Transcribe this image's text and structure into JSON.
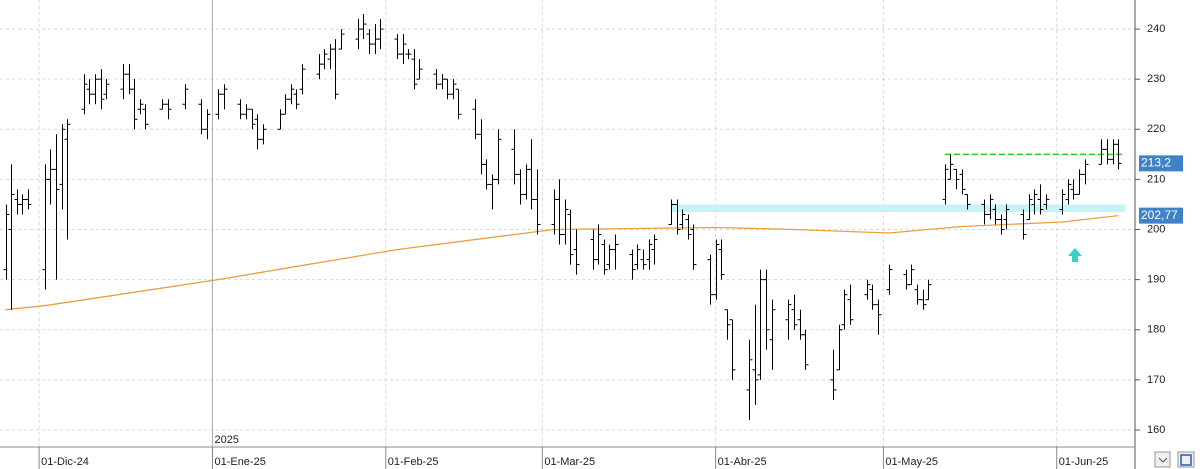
{
  "chart_data": {
    "type": "ohlc",
    "color": "#000000",
    "grid": true,
    "xlim": [
      "2024-11-24",
      "2025-06-15"
    ],
    "ylim": [
      156.6,
      245.8
    ],
    "yticks": [
      160,
      170,
      180,
      190,
      200,
      210,
      220,
      230,
      240
    ],
    "xticks": [
      {
        "value": "2024-12-01",
        "label": "01-Dic-24"
      },
      {
        "value": "2025-01-01",
        "label": "01-Ene-25"
      },
      {
        "value": "2025-02-01",
        "label": "01-Feb-25"
      },
      {
        "value": "2025-03-01",
        "label": "01-Mar-25"
      },
      {
        "value": "2025-04-01",
        "label": "01-Abr-25"
      },
      {
        "value": "2025-05-01",
        "label": "01-May-25"
      },
      {
        "value": "2025-06-01",
        "label": "01-Jun-25"
      }
    ],
    "year_marker": {
      "value": "2025-01-01",
      "label": "2025"
    },
    "x": [
      "2024-11-25",
      "2024-11-26",
      "2024-11-27",
      "2024-11-28",
      "2024-11-29",
      "2024-12-02",
      "2024-12-03",
      "2024-12-04",
      "2024-12-05",
      "2024-12-06",
      "2024-12-09",
      "2024-12-10",
      "2024-12-11",
      "2024-12-12",
      "2024-12-13",
      "2024-12-16",
      "2024-12-17",
      "2024-12-18",
      "2024-12-19",
      "2024-12-20",
      "2024-12-23",
      "2024-12-24",
      "2024-12-27",
      "2024-12-30",
      "2024-12-31",
      "2025-01-02",
      "2025-01-03",
      "2025-01-06",
      "2025-01-07",
      "2025-01-08",
      "2025-01-09",
      "2025-01-10",
      "2025-01-13",
      "2025-01-14",
      "2025-01-15",
      "2025-01-16",
      "2025-01-17",
      "2025-01-20",
      "2025-01-21",
      "2025-01-22",
      "2025-01-23",
      "2025-01-24",
      "2025-01-27",
      "2025-01-28",
      "2025-01-29",
      "2025-01-30",
      "2025-01-31",
      "2025-02-03",
      "2025-02-04",
      "2025-02-05",
      "2025-02-06",
      "2025-02-07",
      "2025-02-10",
      "2025-02-11",
      "2025-02-12",
      "2025-02-13",
      "2025-02-14",
      "2025-02-17",
      "2025-02-18",
      "2025-02-19",
      "2025-02-20",
      "2025-02-21",
      "2025-02-24",
      "2025-02-25",
      "2025-02-26",
      "2025-02-27",
      "2025-02-28",
      "2025-03-03",
      "2025-03-04",
      "2025-03-05",
      "2025-03-06",
      "2025-03-07",
      "2025-03-10",
      "2025-03-11",
      "2025-03-12",
      "2025-03-13",
      "2025-03-14",
      "2025-03-17",
      "2025-03-18",
      "2025-03-19",
      "2025-03-20",
      "2025-03-21",
      "2025-03-24",
      "2025-03-25",
      "2025-03-26",
      "2025-03-27",
      "2025-03-28",
      "2025-03-31",
      "2025-04-01",
      "2025-04-02",
      "2025-04-03",
      "2025-04-04",
      "2025-04-07",
      "2025-04-08",
      "2025-04-09",
      "2025-04-10",
      "2025-04-11",
      "2025-04-14",
      "2025-04-15",
      "2025-04-16",
      "2025-04-17",
      "2025-04-22",
      "2025-04-23",
      "2025-04-24",
      "2025-04-25",
      "2025-04-28",
      "2025-04-29",
      "2025-04-30",
      "2025-05-02",
      "2025-05-05",
      "2025-05-06",
      "2025-05-07",
      "2025-05-08",
      "2025-05-09",
      "2025-05-12",
      "2025-05-13",
      "2025-05-14",
      "2025-05-15",
      "2025-05-16",
      "2025-05-19",
      "2025-05-20",
      "2025-05-21",
      "2025-05-22",
      "2025-05-23",
      "2025-05-26",
      "2025-05-27",
      "2025-05-28",
      "2025-05-29",
      "2025-05-30",
      "2025-06-02",
      "2025-06-03",
      "2025-06-04",
      "2025-06-05",
      "2025-06-06",
      "2025-06-09",
      "2025-06-10",
      "2025-06-11",
      "2025-06-12"
    ],
    "values": [
      [
        192,
        205,
        190,
        203
      ],
      [
        200,
        213,
        184,
        207
      ],
      [
        206,
        208,
        203,
        205
      ],
      [
        205,
        207,
        203,
        206
      ],
      [
        206,
        208,
        204,
        205
      ],
      [
        192,
        213,
        188,
        210
      ],
      [
        210,
        216,
        205,
        212
      ],
      [
        212,
        219,
        190,
        208
      ],
      [
        209,
        221,
        204,
        220
      ],
      [
        218,
        222,
        198,
        221
      ],
      [
        224,
        231,
        223,
        229
      ],
      [
        228,
        230,
        225,
        227
      ],
      [
        227,
        231,
        225,
        230
      ],
      [
        230,
        232,
        224,
        226
      ],
      [
        227,
        230,
        226,
        229
      ],
      [
        228,
        233,
        226,
        231
      ],
      [
        231,
        233,
        227,
        228
      ],
      [
        228,
        230,
        220,
        222
      ],
      [
        224,
        226,
        223,
        225
      ],
      [
        224,
        225,
        220,
        221
      ],
      [
        224,
        226,
        224,
        225
      ],
      [
        225,
        226,
        222,
        224
      ],
      [
        225,
        229,
        224,
        228
      ],
      [
        225,
        226,
        219,
        220
      ],
      [
        220,
        224,
        218,
        223
      ],
      [
        223,
        228,
        222,
        227
      ],
      [
        227,
        229,
        224,
        228
      ],
      [
        225,
        226,
        222,
        223
      ],
      [
        223,
        225,
        222,
        224
      ],
      [
        224,
        224,
        220,
        221
      ],
      [
        222,
        223,
        216,
        218
      ],
      [
        218,
        221,
        217,
        220
      ],
      [
        220,
        224,
        220,
        223
      ],
      [
        223,
        227,
        223,
        226
      ],
      [
        226,
        229,
        225,
        228
      ],
      [
        227,
        228,
        224,
        225
      ],
      [
        228,
        233,
        227,
        232
      ],
      [
        231,
        235,
        230,
        233
      ],
      [
        233,
        236,
        232,
        235
      ],
      [
        234,
        237,
        232,
        236
      ],
      [
        236,
        238,
        226,
        227
      ],
      [
        236,
        240,
        236,
        239
      ],
      [
        238,
        242,
        236,
        240
      ],
      [
        240,
        243,
        238,
        241
      ],
      [
        239,
        240,
        235,
        237
      ],
      [
        237,
        241,
        235,
        238
      ],
      [
        238,
        242,
        236,
        240
      ],
      [
        238,
        239,
        234,
        235
      ],
      [
        235,
        239,
        233,
        237
      ],
      [
        235,
        236,
        234,
        235
      ],
      [
        234,
        236,
        228,
        229
      ],
      [
        230,
        234,
        230,
        232
      ],
      [
        231,
        232,
        228,
        229
      ],
      [
        229,
        231,
        228,
        230
      ],
      [
        230,
        230,
        226,
        227
      ],
      [
        227,
        230,
        226,
        229
      ],
      [
        228,
        228,
        222,
        223
      ],
      [
        224,
        226,
        218,
        219
      ],
      [
        219,
        222,
        211,
        213
      ],
      [
        213,
        214,
        208,
        209
      ],
      [
        209,
        211,
        204,
        210
      ],
      [
        210,
        220,
        209,
        218
      ],
      [
        216,
        220,
        209,
        211
      ],
      [
        211,
        212,
        205,
        207
      ],
      [
        207,
        213,
        206,
        212
      ],
      [
        212,
        218,
        204,
        206
      ],
      [
        206,
        212,
        199,
        201
      ],
      [
        201,
        208,
        199,
        206
      ],
      [
        206,
        210,
        197,
        199
      ],
      [
        199,
        206,
        197,
        204
      ],
      [
        203,
        204,
        193,
        195
      ],
      [
        196,
        200,
        191,
        193
      ],
      [
        198,
        200,
        192,
        194
      ],
      [
        194,
        201,
        193,
        199
      ],
      [
        197,
        198,
        191,
        192
      ],
      [
        193,
        197,
        192,
        196
      ],
      [
        196,
        199,
        192,
        197
      ],
      [
        195,
        196,
        190,
        192
      ],
      [
        193,
        197,
        192,
        196
      ],
      [
        194,
        196,
        192,
        193
      ],
      [
        194,
        198,
        192,
        197
      ],
      [
        196,
        199,
        193,
        198
      ],
      [
        201,
        206,
        201,
        205
      ],
      [
        205,
        206,
        199,
        200
      ],
      [
        201,
        204,
        200,
        203
      ],
      [
        202,
        203,
        198,
        199
      ],
      [
        200,
        201,
        192,
        193
      ],
      [
        194,
        195,
        185,
        187
      ],
      [
        187,
        198,
        186,
        197
      ],
      [
        196,
        198,
        190,
        191
      ],
      [
        184,
        184,
        178,
        181
      ],
      [
        182,
        182,
        170,
        172
      ],
      [
        168,
        178,
        162,
        174
      ],
      [
        172,
        185,
        165,
        170
      ],
      [
        171,
        192,
        170,
        190
      ],
      [
        190,
        192,
        176,
        180
      ],
      [
        178,
        186,
        172,
        184
      ],
      [
        182,
        186,
        178,
        185
      ],
      [
        184,
        187,
        180,
        181
      ],
      [
        182,
        184,
        178,
        179
      ],
      [
        179,
        180,
        172,
        173
      ],
      [
        170,
        176,
        166,
        168
      ],
      [
        172,
        181,
        172,
        180
      ],
      [
        181,
        188,
        180,
        187
      ],
      [
        186,
        189,
        181,
        182
      ],
      [
        187,
        190,
        186,
        189
      ],
      [
        188,
        189,
        184,
        185
      ],
      [
        185,
        186,
        179,
        183
      ],
      [
        188,
        193,
        187,
        192
      ],
      [
        191,
        192,
        188,
        189
      ],
      [
        189,
        193,
        189,
        192
      ],
      [
        188,
        189,
        185,
        186
      ],
      [
        186,
        188,
        184,
        185
      ],
      [
        186,
        190,
        186,
        189
      ],
      [
        206,
        213,
        205,
        212
      ],
      [
        210,
        215,
        210,
        213
      ],
      [
        212,
        212,
        208,
        210
      ],
      [
        211,
        212,
        207,
        208
      ],
      [
        207,
        207,
        204,
        205
      ],
      [
        205,
        206,
        201,
        203
      ],
      [
        203,
        207,
        202,
        206
      ],
      [
        204,
        205,
        201,
        202
      ],
      [
        202,
        203,
        199,
        200
      ],
      [
        202,
        205,
        200,
        204
      ],
      [
        203,
        204,
        198,
        199
      ],
      [
        202,
        207,
        202,
        206
      ],
      [
        205,
        208,
        203,
        207
      ],
      [
        206,
        209,
        203,
        204
      ],
      [
        205,
        207,
        204,
        206
      ],
      [
        204,
        208,
        203,
        207
      ],
      [
        206,
        210,
        205,
        209
      ],
      [
        208,
        210,
        206,
        207
      ],
      [
        207,
        212,
        207,
        211
      ],
      [
        211,
        214,
        209,
        213
      ],
      [
        213,
        218,
        213,
        216
      ],
      [
        216,
        218,
        213,
        214
      ],
      [
        214,
        218,
        213,
        217
      ],
      [
        217,
        218,
        212,
        213.2
      ]
    ],
    "ma": {
      "color": "#e8a040",
      "x": [
        "2024-11-25",
        "2024-12-02",
        "2025-01-02",
        "2025-02-03",
        "2025-03-03",
        "2025-04-01",
        "2025-04-15",
        "2025-05-02",
        "2025-05-15",
        "2025-06-02",
        "2025-06-12"
      ],
      "values": [
        184,
        184.8,
        190,
        196,
        200,
        200.4,
        200,
        199.3,
        200.6,
        201.5,
        202.77
      ]
    },
    "hline": {
      "value": 215,
      "start": "2025-05-12",
      "color": "#22cc22"
    },
    "band": {
      "low": 203.5,
      "high": 205,
      "start": "2025-03-24",
      "color": "#c4f4f6"
    },
    "price_labels": [
      {
        "value": 213.2,
        "label": "213,2"
      },
      {
        "value": 202.77,
        "label": "202,77"
      }
    ]
  }
}
